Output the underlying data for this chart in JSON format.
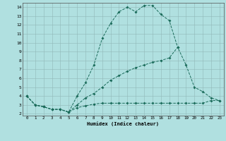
{
  "xlabel": "Humidex (Indice chaleur)",
  "bg_color": "#b0e0e0",
  "grid_color": "#90b8b8",
  "line_color": "#1a6b5a",
  "xlim": [
    -0.5,
    23.5
  ],
  "ylim": [
    1.8,
    14.5
  ],
  "xticks": [
    0,
    1,
    2,
    3,
    4,
    5,
    6,
    7,
    8,
    9,
    10,
    11,
    12,
    13,
    14,
    15,
    16,
    17,
    18,
    19,
    20,
    21,
    22,
    23
  ],
  "yticks": [
    2,
    3,
    4,
    5,
    6,
    7,
    8,
    9,
    10,
    11,
    12,
    13,
    14
  ],
  "line1_x": [
    0,
    1,
    2,
    3,
    4,
    5,
    6,
    7,
    8,
    9,
    10,
    11,
    12,
    13,
    14,
    15,
    16,
    17,
    18
  ],
  "line1_y": [
    4.0,
    3.0,
    2.8,
    2.5,
    2.5,
    2.2,
    4.0,
    5.5,
    7.5,
    10.5,
    12.2,
    13.5,
    14.0,
    13.5,
    14.2,
    14.2,
    13.2,
    12.5,
    9.5
  ],
  "line2_x": [
    0,
    1,
    2,
    3,
    4,
    5,
    6,
    7,
    8,
    9,
    10,
    11,
    12,
    13,
    14,
    15,
    16,
    17,
    18,
    19,
    20,
    21,
    22,
    23
  ],
  "line2_y": [
    4.0,
    3.0,
    2.8,
    2.5,
    2.5,
    2.2,
    3.0,
    3.8,
    4.3,
    5.0,
    5.8,
    6.3,
    6.8,
    7.2,
    7.5,
    7.8,
    8.0,
    8.3,
    9.5,
    7.5,
    5.0,
    4.5,
    3.8,
    3.5
  ],
  "line3_x": [
    0,
    1,
    2,
    3,
    4,
    5,
    6,
    7,
    8,
    9,
    10,
    11,
    12,
    13,
    14,
    15,
    16,
    17,
    18,
    19,
    20,
    21,
    22,
    23
  ],
  "line3_y": [
    4.0,
    3.0,
    2.8,
    2.5,
    2.5,
    2.2,
    2.7,
    2.9,
    3.1,
    3.2,
    3.2,
    3.2,
    3.2,
    3.2,
    3.2,
    3.2,
    3.2,
    3.2,
    3.2,
    3.2,
    3.2,
    3.2,
    3.5,
    3.5
  ]
}
